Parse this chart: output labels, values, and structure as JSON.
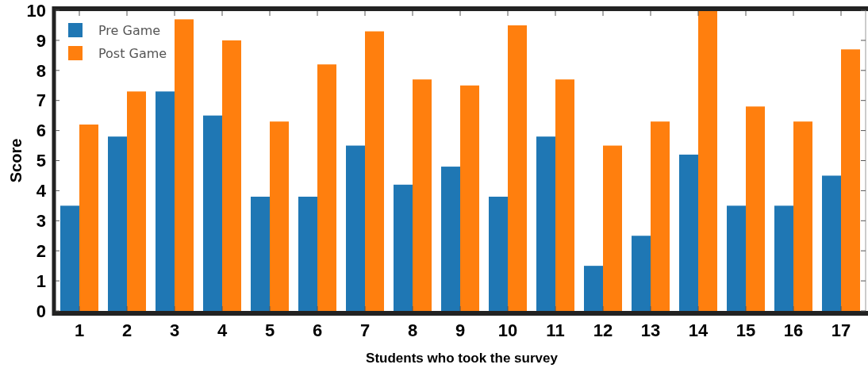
{
  "chart_data": {
    "type": "bar",
    "xlabel": "Students who took the survey",
    "ylabel": "Score",
    "categories": [
      "1",
      "2",
      "3",
      "4",
      "5",
      "6",
      "7",
      "8",
      "9",
      "10",
      "11",
      "12",
      "13",
      "14",
      "15",
      "16",
      "17"
    ],
    "series": [
      {
        "name": "Pre Game",
        "color": "#1f77b4",
        "values": [
          3.5,
          5.8,
          7.3,
          6.5,
          3.8,
          3.8,
          5.5,
          4.2,
          4.8,
          3.8,
          5.8,
          1.5,
          2.5,
          5.2,
          3.5,
          3.5,
          4.5
        ]
      },
      {
        "name": "Post Game",
        "color": "#ff7f0e",
        "values": [
          6.2,
          7.3,
          9.7,
          9.0,
          6.3,
          8.2,
          9.3,
          7.7,
          7.5,
          9.5,
          7.7,
          5.5,
          6.3,
          10.0,
          6.8,
          6.3,
          8.7
        ]
      }
    ],
    "ylim": [
      0,
      10
    ],
    "yticks": [
      0,
      1,
      2,
      3,
      4,
      5,
      6,
      7,
      8,
      9,
      10
    ],
    "grid": false,
    "legend": "top left"
  }
}
